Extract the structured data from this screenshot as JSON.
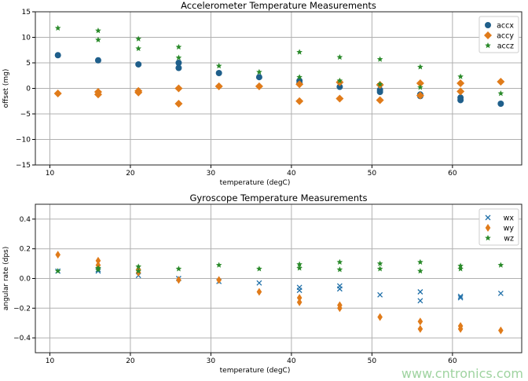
{
  "colors": {
    "series1": "#1f5f8b",
    "series2": "#e07b1a",
    "series3": "#2a8a2a",
    "grid": "#b0b0b0"
  },
  "watermark": "www.cntronics.com",
  "chart_data": [
    {
      "type": "scatter",
      "title": "Accelerometer Temperature Measurements",
      "xlabel": "temperature (degC)",
      "ylabel": "offset (mg)",
      "xlim": [
        8.2,
        68.6
      ],
      "ylim": [
        -15,
        15
      ],
      "xticks": [
        10,
        20,
        30,
        40,
        50,
        60
      ],
      "yticks": [
        -15,
        -10,
        -5,
        0,
        5,
        10,
        15
      ],
      "grid": true,
      "legend": "top-right",
      "series": [
        {
          "name": "accx",
          "marker": "circle",
          "color": "#1f5f8b",
          "points": [
            [
              11,
              6.5
            ],
            [
              16,
              5.5
            ],
            [
              21,
              4.7
            ],
            [
              26,
              5
            ],
            [
              26,
              4
            ],
            [
              31,
              3
            ],
            [
              36,
              2.2
            ],
            [
              41,
              1.5
            ],
            [
              41,
              1
            ],
            [
              46,
              0.3
            ],
            [
              51,
              -0.3
            ],
            [
              51,
              -0.7
            ],
            [
              56,
              -1.5
            ],
            [
              56,
              -1.2
            ],
            [
              61,
              -2.3
            ],
            [
              61,
              -1.8
            ],
            [
              66,
              -3
            ]
          ]
        },
        {
          "name": "accy",
          "marker": "diamond",
          "color": "#e07b1a",
          "points": [
            [
              11,
              -1
            ],
            [
              16,
              -0.7
            ],
            [
              16,
              -1.2
            ],
            [
              21,
              -0.5
            ],
            [
              21,
              -0.8
            ],
            [
              26,
              0
            ],
            [
              26,
              -3
            ],
            [
              31,
              0.4
            ],
            [
              36,
              0.4
            ],
            [
              41,
              0.8
            ],
            [
              41,
              -2.5
            ],
            [
              46,
              1.2
            ],
            [
              46,
              -2
            ],
            [
              51,
              0.7
            ],
            [
              51,
              -2.3
            ],
            [
              56,
              1
            ],
            [
              56,
              -1.4
            ],
            [
              61,
              1
            ],
            [
              61,
              -0.6
            ],
            [
              66,
              1.3
            ]
          ]
        },
        {
          "name": "accz",
          "marker": "star",
          "color": "#2a8a2a",
          "points": [
            [
              11,
              11.8
            ],
            [
              16,
              11.3
            ],
            [
              16,
              9.5
            ],
            [
              21,
              9.7
            ],
            [
              21,
              7.8
            ],
            [
              26,
              8.1
            ],
            [
              26,
              6
            ],
            [
              31,
              4.4
            ],
            [
              36,
              3.2
            ],
            [
              41,
              7.1
            ],
            [
              41,
              2.2
            ],
            [
              46,
              6.1
            ],
            [
              46,
              1.5
            ],
            [
              51,
              5.7
            ],
            [
              51,
              0.8
            ],
            [
              56,
              4.2
            ],
            [
              56,
              0.2
            ],
            [
              61,
              2.3
            ],
            [
              66,
              -1
            ]
          ]
        }
      ]
    },
    {
      "type": "scatter",
      "title": "Gyroscope Temperature Measurements",
      "xlabel": "temperature (degC)",
      "ylabel": "angular rate (dps)",
      "xlim": [
        8.2,
        68.6
      ],
      "ylim": [
        -0.5,
        0.5
      ],
      "xticks": [
        10,
        20,
        30,
        40,
        50,
        60
      ],
      "yticks": [
        -0.4,
        -0.2,
        0.0,
        0.2,
        0.4
      ],
      "ytick_labels": [
        "−0.4",
        "−0.2",
        "0.0",
        "0.2",
        "0.4"
      ],
      "grid": true,
      "legend": "top-right",
      "series": [
        {
          "name": "wx",
          "marker": "x",
          "color": "#1f6fa8",
          "points": [
            [
              11,
              0.05
            ],
            [
              16,
              0.06
            ],
            [
              16,
              0.05
            ],
            [
              21,
              0.02
            ],
            [
              26,
              0
            ],
            [
              31,
              -0.02
            ],
            [
              36,
              -0.03
            ],
            [
              41,
              -0.06
            ],
            [
              41,
              -0.08
            ],
            [
              46,
              -0.05
            ],
            [
              46,
              -0.07
            ],
            [
              51,
              -0.11
            ],
            [
              56,
              -0.09
            ],
            [
              56,
              -0.15
            ],
            [
              61,
              -0.12
            ],
            [
              61,
              -0.13
            ],
            [
              66,
              -0.1
            ]
          ]
        },
        {
          "name": "wy",
          "marker": "thin_diamond",
          "color": "#e07b1a",
          "points": [
            [
              11,
              0.16
            ],
            [
              16,
              0.12
            ],
            [
              16,
              0.09
            ],
            [
              21,
              0.06
            ],
            [
              21,
              0.04
            ],
            [
              26,
              -0.01
            ],
            [
              31,
              -0.01
            ],
            [
              36,
              -0.09
            ],
            [
              41,
              -0.13
            ],
            [
              41,
              -0.16
            ],
            [
              46,
              -0.18
            ],
            [
              46,
              -0.2
            ],
            [
              51,
              -0.26
            ],
            [
              56,
              -0.29
            ],
            [
              56,
              -0.34
            ],
            [
              61,
              -0.32
            ],
            [
              61,
              -0.34
            ],
            [
              66,
              -0.35
            ]
          ]
        },
        {
          "name": "wz",
          "marker": "star",
          "color": "#2a8a2a",
          "points": [
            [
              11,
              0.05
            ],
            [
              16,
              0.07
            ],
            [
              16,
              0.06
            ],
            [
              21,
              0.08
            ],
            [
              21,
              0.05
            ],
            [
              26,
              0.065
            ],
            [
              31,
              0.09
            ],
            [
              36,
              0.065
            ],
            [
              41,
              0.095
            ],
            [
              41,
              0.07
            ],
            [
              46,
              0.11
            ],
            [
              46,
              0.06
            ],
            [
              51,
              0.1
            ],
            [
              51,
              0.065
            ],
            [
              56,
              0.11
            ],
            [
              56,
              0.05
            ],
            [
              61,
              0.085
            ],
            [
              61,
              0.065
            ],
            [
              66,
              0.09
            ]
          ]
        }
      ]
    }
  ]
}
